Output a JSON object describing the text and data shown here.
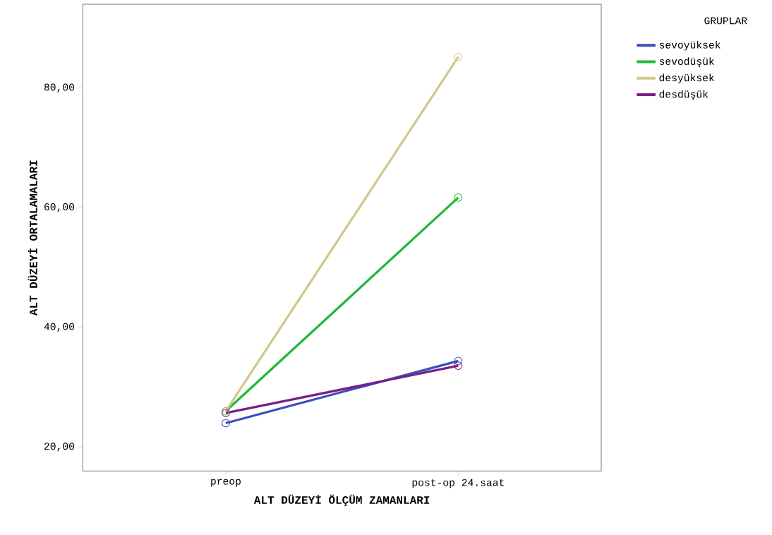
{
  "chart_data": {
    "type": "line",
    "xlabel": "ALT DÜZEYİ ÖLÇÜM ZAMANLARI",
    "ylabel": "ALT DÜZEYİ ORTALAMALARI",
    "legend_title": "GRUPLAR",
    "categories": [
      "preop",
      "post-op 24.saat"
    ],
    "series": [
      {
        "name": "sevoyüksek",
        "color": "#3a4fc0",
        "values": [
          24.0,
          34.4
        ]
      },
      {
        "name": "sevodüşük",
        "color": "#22b83a",
        "values": [
          26.0,
          61.7
        ]
      },
      {
        "name": "desyüksek",
        "color": "#d2c98a",
        "values": [
          26.0,
          85.2
        ]
      },
      {
        "name": "desdüşük",
        "color": "#7a1f86",
        "values": [
          25.7,
          33.6
        ]
      }
    ],
    "ylim": [
      16,
      94
    ],
    "yticks": [
      {
        "value": 20,
        "label": "20,00"
      },
      {
        "value": 40,
        "label": "40,00"
      },
      {
        "value": 60,
        "label": "60,00"
      },
      {
        "value": 80,
        "label": "80,00"
      }
    ],
    "marker": "circle",
    "legend": "right",
    "grid": false
  }
}
